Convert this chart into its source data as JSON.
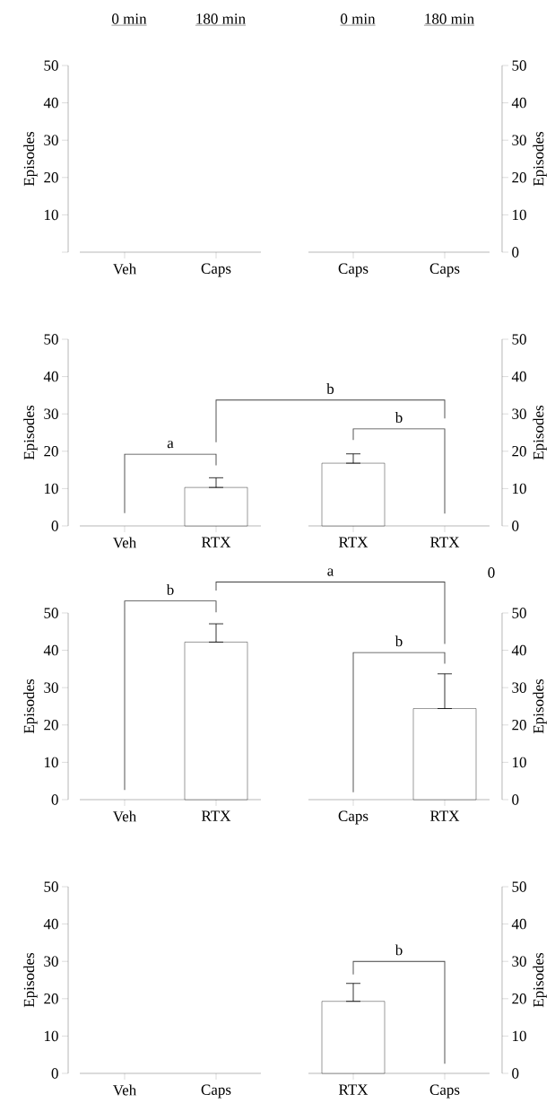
{
  "chart_data": [
    {
      "type": "bar",
      "categories": [
        "Veh",
        "Caps"
      ],
      "ylabel": "Episodes",
      "ylim": [
        0,
        50
      ],
      "yticks": [
        {
          "value": 0,
          "label": null
        },
        10,
        20,
        30,
        40,
        50
      ],
      "annotations": [
        "0 min",
        "180 min"
      ],
      "series": [
        {
          "color": "#ffffff",
          "values": [
            0,
            0
          ],
          "errors": [
            null,
            null
          ]
        }
      ]
    },
    {
      "type": "bar",
      "categories": [
        "Caps",
        "Caps"
      ],
      "y2label": "Episodes",
      "y2lim": [
        0,
        50
      ],
      "y2ticks": [
        0,
        10,
        20,
        30,
        40,
        50
      ],
      "annotations": [
        "0 min",
        "180 min"
      ],
      "series": [
        {
          "color": "#ffffff",
          "values": [
            0,
            0
          ],
          "errors": [
            null,
            null
          ],
          "axis": "y2"
        }
      ]
    },
    {
      "type": "bar",
      "categories": [
        "Veh",
        "RTX"
      ],
      "ylabel": "Episodes",
      "ylim": [
        0,
        50
      ],
      "yticks": [
        0,
        10,
        20,
        30,
        40,
        50
      ],
      "annotations": [
        "a",
        "b"
      ],
      "series": [
        {
          "color": "#ffffff",
          "values": [
            0,
            10.3
          ],
          "errors": [
            null,
            [
              10.3,
              12.9
            ]
          ]
        }
      ]
    },
    {
      "type": "bar",
      "categories": [
        "RTX",
        "RTX"
      ],
      "y2label": "Episodes",
      "y2lim": [
        0,
        50
      ],
      "y2ticks": [
        0,
        10,
        20,
        30,
        40,
        50
      ],
      "annotations": [
        "b"
      ],
      "series": [
        {
          "color": "#ffffff",
          "values": [
            16.8,
            0
          ],
          "errors": [
            [
              16.8,
              19.3
            ],
            null
          ],
          "axis": "y2"
        }
      ]
    },
    {
      "type": "bar",
      "categories": [
        "Veh",
        "RTX"
      ],
      "ylabel": "Episodes",
      "ylim": [
        0,
        50
      ],
      "yticks": [
        0,
        10,
        20,
        30,
        40,
        50
      ],
      "annotations": [
        "b",
        "a"
      ],
      "series": [
        {
          "color": "#ffffff",
          "values": [
            0,
            42.2
          ],
          "errors": [
            null,
            [
              42.2,
              47.1
            ]
          ]
        }
      ]
    },
    {
      "type": "bar",
      "categories": [
        "Caps",
        "RTX"
      ],
      "y2label": "Episodes",
      "y2lim": [
        0,
        50
      ],
      "y2ticks": [
        0,
        10,
        20,
        30,
        40,
        50
      ],
      "annotations": [
        "b",
        "0"
      ],
      "series": [
        {
          "color": "#ffffff",
          "values": [
            0,
            24.4
          ],
          "errors": [
            null,
            [
              24.4,
              33.7
            ]
          ],
          "axis": "y2"
        }
      ]
    },
    {
      "type": "bar",
      "categories": [
        "Veh",
        "Caps"
      ],
      "ylabel": "Episodes",
      "ylim": [
        0,
        50
      ],
      "yticks": [
        0,
        10,
        20,
        30,
        40,
        50
      ],
      "series": [
        {
          "color": "#ffffff",
          "values": [
            0,
            0
          ],
          "errors": [
            null,
            null
          ]
        }
      ]
    },
    {
      "type": "bar",
      "categories": [
        "RTX",
        "Caps"
      ],
      "y2label": "Episodes",
      "y2lim": [
        0,
        50
      ],
      "y2ticks": [
        0,
        10,
        20,
        30,
        40,
        50
      ],
      "annotations": [
        "b"
      ],
      "series": [
        {
          "color": "#ffffff",
          "values": [
            19.3,
            0
          ],
          "errors": [
            [
              19.3,
              24.1
            ],
            null
          ],
          "axis": "y2"
        }
      ]
    }
  ]
}
